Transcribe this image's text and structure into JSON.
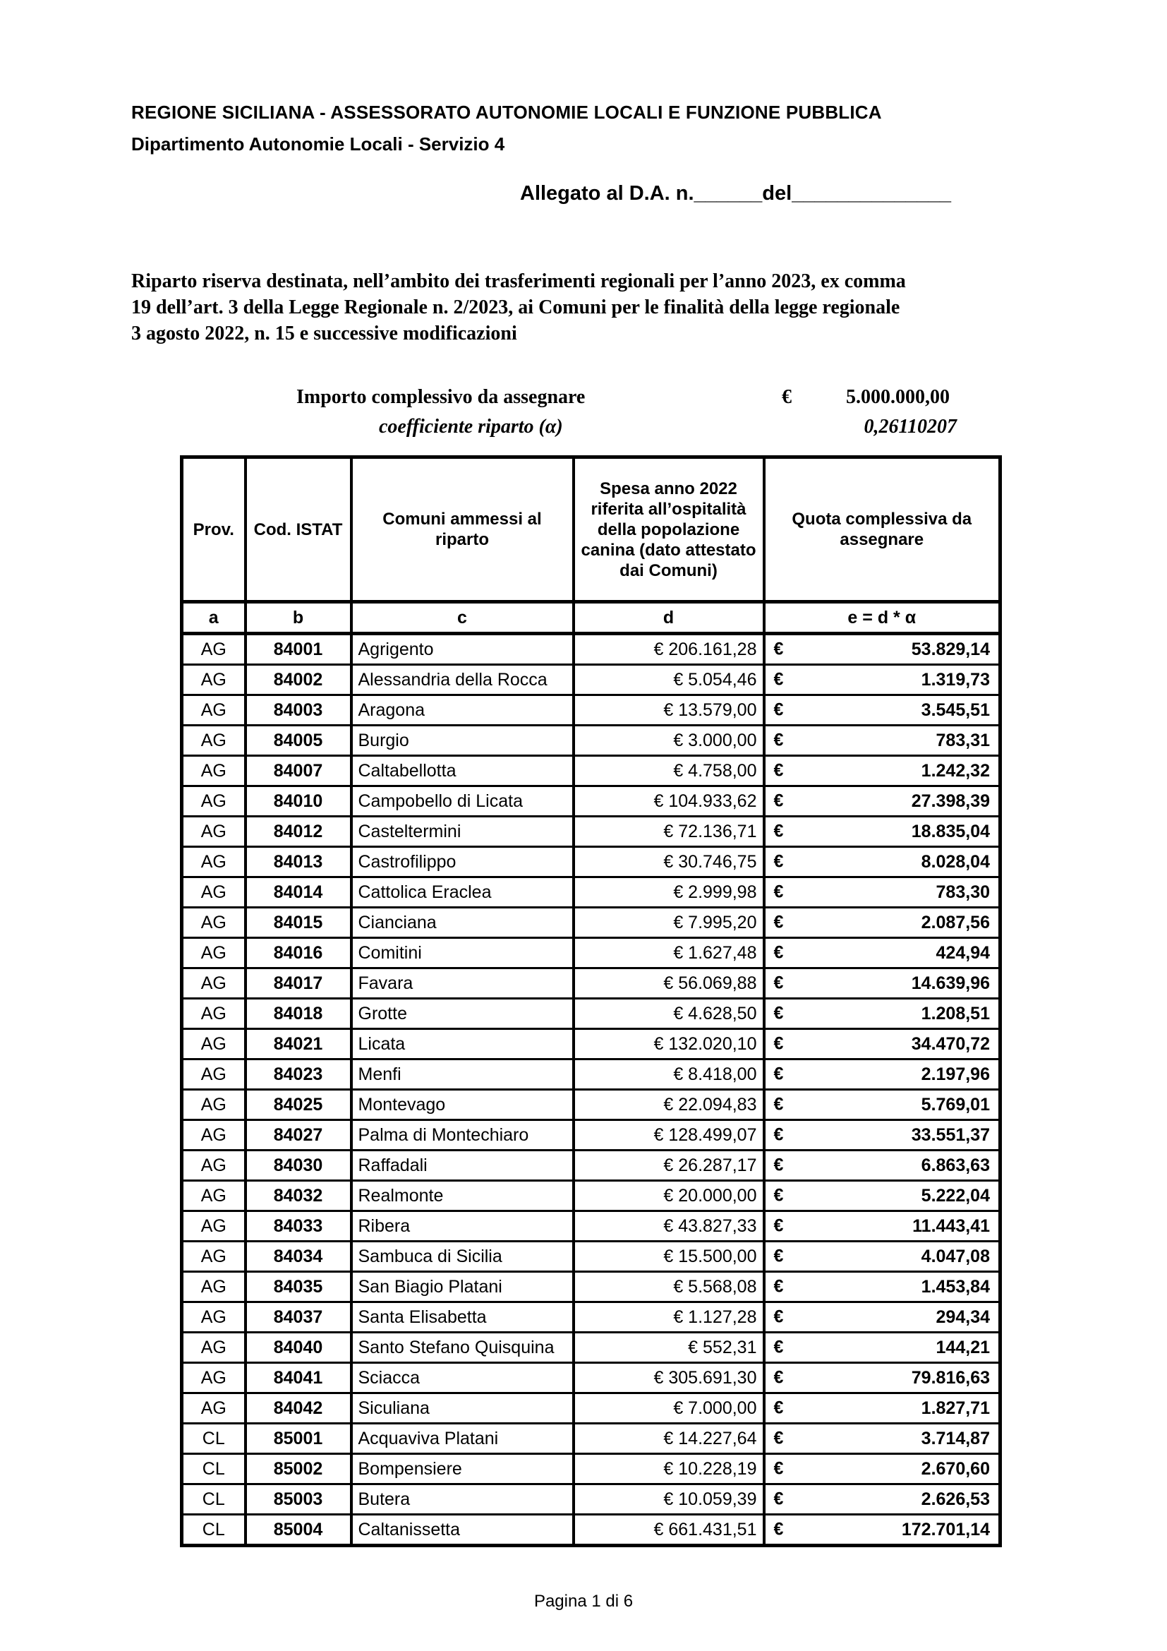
{
  "doc": {
    "header_line1": "REGIONE SICILIANA - ASSESSORATO AUTONOMIE LOCALI E FUNZIONE PUBBLICA",
    "header_line2": "Dipartimento Autonomie Locali - Servizio 4",
    "allegato_line": "Allegato al D.A. n.______del______________",
    "paragraph_lines": [
      "Riparto riserva destinata, nell’ambito dei trasferimenti regionali per l’anno 2023,  ex comma",
      "19 dell’art. 3 della Legge Regionale n. 2/2023,  ai Comuni per le finalità della  legge regionale",
      "3 agosto 2022, n. 15 e successive modificazioni"
    ],
    "importo_label": "Importo complessivo da assegnare",
    "importo_currency": "€",
    "importo_value": "5.000.000,00",
    "coefficiente_label": "coefficiente riparto  (α)",
    "coefficiente_value": "0,26110207",
    "footer": "Pagina 1 di 6"
  },
  "table": {
    "headers": [
      "Prov.",
      "Cod. ISTAT",
      "Comuni ammessi al riparto",
      "Spesa anno 2022 riferita all’ospitalità della popolazione canina (dato attestato dai Comuni)",
      "Quota complessiva da assegnare"
    ],
    "col_letters": [
      "a",
      "b",
      "c",
      "d",
      "e = d * α"
    ],
    "currency_symbol": "€",
    "rows": [
      {
        "prov": "AG",
        "istat": "84001",
        "comune": "Agrigento",
        "spesa": "€ 206.161,28",
        "quota": "53.829,14"
      },
      {
        "prov": "AG",
        "istat": "84002",
        "comune": "Alessandria della Rocca",
        "spesa": "€ 5.054,46",
        "quota": "1.319,73"
      },
      {
        "prov": "AG",
        "istat": "84003",
        "comune": "Aragona",
        "spesa": "€ 13.579,00",
        "quota": "3.545,51"
      },
      {
        "prov": "AG",
        "istat": "84005",
        "comune": "Burgio",
        "spesa": "€ 3.000,00",
        "quota": "783,31"
      },
      {
        "prov": "AG",
        "istat": "84007",
        "comune": "Caltabellotta",
        "spesa": "€ 4.758,00",
        "quota": "1.242,32"
      },
      {
        "prov": "AG",
        "istat": "84010",
        "comune": "Campobello di Licata",
        "spesa": "€ 104.933,62",
        "quota": "27.398,39"
      },
      {
        "prov": "AG",
        "istat": "84012",
        "comune": "Casteltermini",
        "spesa": "€ 72.136,71",
        "quota": "18.835,04"
      },
      {
        "prov": "AG",
        "istat": "84013",
        "comune": "Castrofilippo",
        "spesa": "€ 30.746,75",
        "quota": "8.028,04"
      },
      {
        "prov": "AG",
        "istat": "84014",
        "comune": "Cattolica Eraclea",
        "spesa": "€ 2.999,98",
        "quota": "783,30"
      },
      {
        "prov": "AG",
        "istat": "84015",
        "comune": "Cianciana",
        "spesa": "€ 7.995,20",
        "quota": "2.087,56"
      },
      {
        "prov": "AG",
        "istat": "84016",
        "comune": "Comitini",
        "spesa": "€ 1.627,48",
        "quota": "424,94"
      },
      {
        "prov": "AG",
        "istat": "84017",
        "comune": "Favara",
        "spesa": "€ 56.069,88",
        "quota": "14.639,96"
      },
      {
        "prov": "AG",
        "istat": "84018",
        "comune": "Grotte",
        "spesa": "€ 4.628,50",
        "quota": "1.208,51"
      },
      {
        "prov": "AG",
        "istat": "84021",
        "comune": "Licata",
        "spesa": "€ 132.020,10",
        "quota": "34.470,72"
      },
      {
        "prov": "AG",
        "istat": "84023",
        "comune": "Menfi",
        "spesa": "€ 8.418,00",
        "quota": "2.197,96"
      },
      {
        "prov": "AG",
        "istat": "84025",
        "comune": "Montevago",
        "spesa": "€ 22.094,83",
        "quota": "5.769,01"
      },
      {
        "prov": "AG",
        "istat": "84027",
        "comune": "Palma di Montechiaro",
        "spesa": "€ 128.499,07",
        "quota": "33.551,37"
      },
      {
        "prov": "AG",
        "istat": "84030",
        "comune": "Raffadali",
        "spesa": "€ 26.287,17",
        "quota": "6.863,63"
      },
      {
        "prov": "AG",
        "istat": "84032",
        "comune": "Realmonte",
        "spesa": "€ 20.000,00",
        "quota": "5.222,04"
      },
      {
        "prov": "AG",
        "istat": "84033",
        "comune": "Ribera",
        "spesa": "€ 43.827,33",
        "quota": "11.443,41"
      },
      {
        "prov": "AG",
        "istat": "84034",
        "comune": "Sambuca di Sicilia",
        "spesa": "€ 15.500,00",
        "quota": "4.047,08"
      },
      {
        "prov": "AG",
        "istat": "84035",
        "comune": "San Biagio Platani",
        "spesa": "€ 5.568,08",
        "quota": "1.453,84"
      },
      {
        "prov": "AG",
        "istat": "84037",
        "comune": "Santa Elisabetta",
        "spesa": "€ 1.127,28",
        "quota": "294,34"
      },
      {
        "prov": "AG",
        "istat": "84040",
        "comune": "Santo Stefano Quisquina",
        "spesa": "€ 552,31",
        "quota": "144,21"
      },
      {
        "prov": "AG",
        "istat": "84041",
        "comune": "Sciacca",
        "spesa": "€ 305.691,30",
        "quota": "79.816,63"
      },
      {
        "prov": "AG",
        "istat": "84042",
        "comune": "Siculiana",
        "spesa": "€ 7.000,00",
        "quota": "1.827,71"
      },
      {
        "prov": "CL",
        "istat": "85001",
        "comune": "Acquaviva Platani",
        "spesa": "€ 14.227,64",
        "quota": "3.714,87"
      },
      {
        "prov": "CL",
        "istat": "85002",
        "comune": "Bompensiere",
        "spesa": "€ 10.228,19",
        "quota": "2.670,60"
      },
      {
        "prov": "CL",
        "istat": "85003",
        "comune": "Butera",
        "spesa": "€ 10.059,39",
        "quota": "2.626,53"
      },
      {
        "prov": "CL",
        "istat": "85004",
        "comune": "Caltanissetta",
        "spesa": "€ 661.431,51",
        "quota": "172.701,14"
      }
    ]
  }
}
